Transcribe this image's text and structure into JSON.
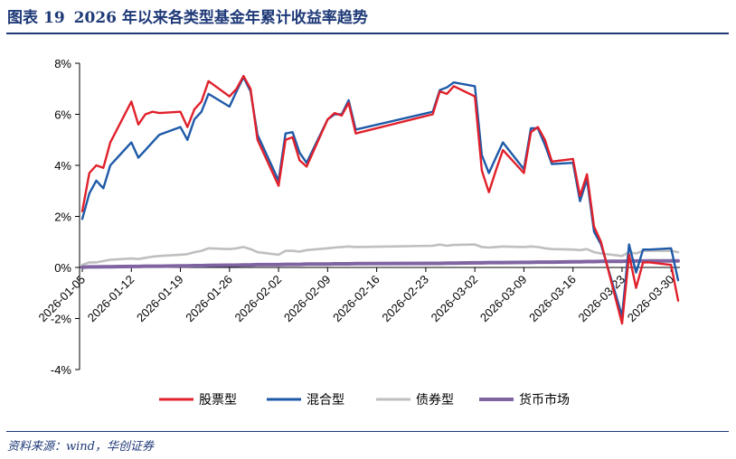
{
  "figure": {
    "label": "图表",
    "number": "19",
    "title": "2026 年以来各类型基金年累计收益率趋势",
    "source": "资料来源：wind，华创证券"
  },
  "colors": {
    "brand": "#1f3a78"
  },
  "chart_data": {
    "type": "line",
    "title": "",
    "xlabel": "",
    "ylabel": "",
    "ylim": [
      -4,
      8
    ],
    "ytick_values": [
      -4,
      -2,
      0,
      2,
      4,
      6,
      8
    ],
    "ytick_labels": [
      "-4%",
      "-2%",
      "0%",
      "2%",
      "4%",
      "6%",
      "8%"
    ],
    "xtick_labels": [
      "2026-01-05",
      "2026-01-12",
      "2026-01-19",
      "2026-01-26",
      "2026-02-02",
      "2026-02-09",
      "2026-02-16",
      "2026-02-23",
      "2026-03-02",
      "2026-03-09",
      "2026-03-16",
      "2026-03-23",
      "2026-03-30"
    ],
    "x": [
      "2026-01-05",
      "2026-01-06",
      "2026-01-07",
      "2026-01-08",
      "2026-01-09",
      "2026-01-12",
      "2026-01-13",
      "2026-01-14",
      "2026-01-15",
      "2026-01-16",
      "2026-01-19",
      "2026-01-20",
      "2026-01-21",
      "2026-01-22",
      "2026-01-23",
      "2026-01-26",
      "2026-01-27",
      "2026-01-28",
      "2026-01-29",
      "2026-01-30",
      "2026-02-02",
      "2026-02-03",
      "2026-02-04",
      "2026-02-05",
      "2026-02-06",
      "2026-02-09",
      "2026-02-10",
      "2026-02-11",
      "2026-02-12",
      "2026-02-13",
      "2026-02-24",
      "2026-02-25",
      "2026-02-26",
      "2026-02-27",
      "2026-03-02",
      "2026-03-03",
      "2026-03-04",
      "2026-03-05",
      "2026-03-06",
      "2026-03-09",
      "2026-03-10",
      "2026-03-11",
      "2026-03-12",
      "2026-03-13",
      "2026-03-16",
      "2026-03-17",
      "2026-03-18",
      "2026-03-19",
      "2026-03-20",
      "2026-03-23",
      "2026-03-24",
      "2026-03-25",
      "2026-03-26",
      "2026-03-27",
      "2026-03-30",
      "2026-03-31"
    ],
    "legend_position": "bottom",
    "series": [
      {
        "name": "股票型",
        "color": "#e0202b",
        "values": [
          2.2,
          3.7,
          4.0,
          3.9,
          4.9,
          6.5,
          5.6,
          6.0,
          6.1,
          6.05,
          6.1,
          5.5,
          6.2,
          6.5,
          7.3,
          6.7,
          7.0,
          7.5,
          7.0,
          5.0,
          3.2,
          5.0,
          5.1,
          4.2,
          3.95,
          5.8,
          6.05,
          5.95,
          6.45,
          5.25,
          6.0,
          6.9,
          6.8,
          7.1,
          6.7,
          3.8,
          2.95,
          3.8,
          4.6,
          3.7,
          5.3,
          5.5,
          5.0,
          4.15,
          4.25,
          2.8,
          3.65,
          1.6,
          1.0,
          -2.2,
          0.5,
          -0.8,
          0.2,
          0.2,
          0.1,
          -1.3
        ]
      },
      {
        "name": "混合型",
        "color": "#1e5aa8",
        "values": [
          1.9,
          2.9,
          3.4,
          3.1,
          4.0,
          4.9,
          4.3,
          4.6,
          4.9,
          5.2,
          5.5,
          5.0,
          5.8,
          6.1,
          6.8,
          6.3,
          6.9,
          7.45,
          6.9,
          5.2,
          3.4,
          5.25,
          5.3,
          4.5,
          4.1,
          5.8,
          6.0,
          6.0,
          6.55,
          5.4,
          6.1,
          6.95,
          7.05,
          7.25,
          7.1,
          4.4,
          3.7,
          4.3,
          4.9,
          3.85,
          5.45,
          5.45,
          4.8,
          4.05,
          4.1,
          2.6,
          3.45,
          1.4,
          0.9,
          -1.9,
          0.9,
          -0.2,
          0.7,
          0.7,
          0.75,
          -0.5
        ]
      },
      {
        "name": "债券型",
        "color": "#bfbfbf",
        "values": [
          0.1,
          0.2,
          0.2,
          0.25,
          0.3,
          0.35,
          0.33,
          0.38,
          0.42,
          0.45,
          0.5,
          0.52,
          0.6,
          0.65,
          0.75,
          0.72,
          0.75,
          0.8,
          0.72,
          0.6,
          0.5,
          0.65,
          0.65,
          0.62,
          0.68,
          0.75,
          0.78,
          0.8,
          0.82,
          0.8,
          0.85,
          0.9,
          0.85,
          0.88,
          0.9,
          0.8,
          0.78,
          0.8,
          0.82,
          0.8,
          0.82,
          0.8,
          0.75,
          0.72,
          0.7,
          0.68,
          0.72,
          0.6,
          0.55,
          0.45,
          0.6,
          0.55,
          0.65,
          0.65,
          0.65,
          0.6
        ]
      },
      {
        "name": "货币市场",
        "color": "#8064a2",
        "values": [
          0.01,
          0.02,
          0.02,
          0.03,
          0.03,
          0.04,
          0.04,
          0.05,
          0.05,
          0.05,
          0.06,
          0.06,
          0.07,
          0.07,
          0.08,
          0.09,
          0.09,
          0.1,
          0.1,
          0.11,
          0.11,
          0.12,
          0.12,
          0.12,
          0.13,
          0.13,
          0.14,
          0.14,
          0.14,
          0.15,
          0.16,
          0.16,
          0.17,
          0.17,
          0.18,
          0.18,
          0.19,
          0.19,
          0.19,
          0.2,
          0.2,
          0.21,
          0.21,
          0.21,
          0.22,
          0.22,
          0.23,
          0.23,
          0.24,
          0.24,
          0.25,
          0.25,
          0.25,
          0.26,
          0.26,
          0.26
        ]
      }
    ]
  }
}
